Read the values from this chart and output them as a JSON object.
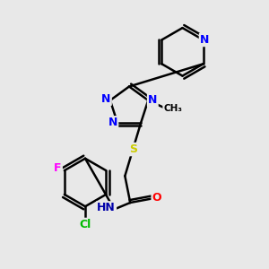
{
  "background_color": "#e8e8e8",
  "atom_colors": {
    "N": "#0000ff",
    "O": "#ff0000",
    "S": "#cccc00",
    "Cl": "#00bb00",
    "F": "#ff00ff",
    "C": "#000000",
    "H": "#000000"
  },
  "bond_color": "#000000",
  "bond_width": 1.8,
  "font_size_atom": 9,
  "font_size_small": 7
}
